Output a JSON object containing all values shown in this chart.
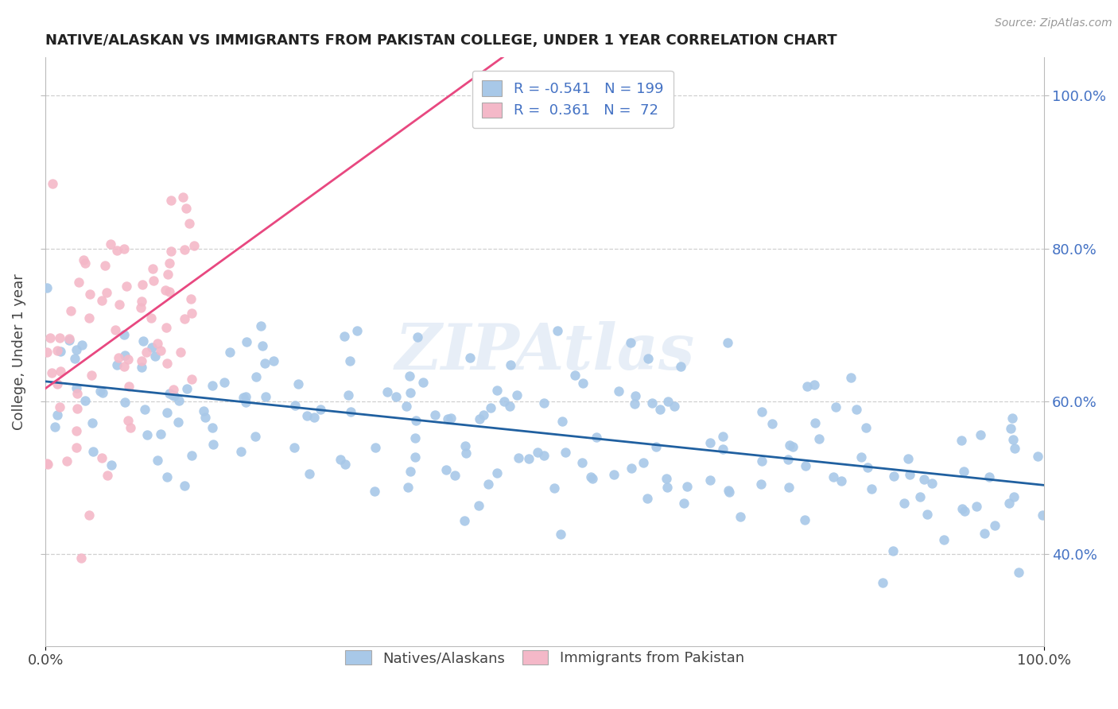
{
  "title": "NATIVE/ALASKAN VS IMMIGRANTS FROM PAKISTAN COLLEGE, UNDER 1 YEAR CORRELATION CHART",
  "source_text": "Source: ZipAtlas.com",
  "ylabel": "College, Under 1 year",
  "blue_R": -0.541,
  "blue_N": 199,
  "pink_R": 0.361,
  "pink_N": 72,
  "blue_color": "#a8c8e8",
  "pink_color": "#f4b8c8",
  "blue_line_color": "#2060a0",
  "pink_line_color": "#e84880",
  "legend_blue_label": "Natives/Alaskans",
  "legend_pink_label": "Immigrants from Pakistan",
  "watermark": "ZIPAtlas",
  "background_color": "#ffffff",
  "grid_color": "#d0d0d0",
  "ymin": 0.28,
  "ymax": 1.05,
  "yticks": [
    0.4,
    0.6,
    0.8,
    1.0
  ],
  "ytick_labels": [
    "40.0%",
    "60.0%",
    "80.0%",
    "100.0%"
  ],
  "xticks": [
    0.0,
    1.0
  ],
  "xtick_labels": [
    "0.0%",
    "100.0%"
  ]
}
